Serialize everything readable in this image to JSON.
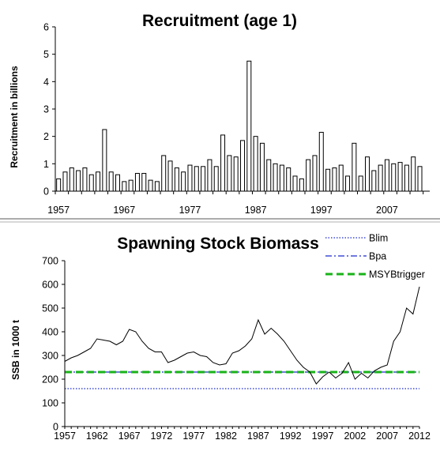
{
  "chart_data": [
    {
      "type": "bar",
      "title": "Recruitment (age 1)",
      "xlabel": "",
      "ylabel": "Recruitment in billions",
      "ylim": [
        0,
        6
      ],
      "yticks": [
        "0",
        "1",
        "2",
        "3",
        "4",
        "5",
        "6"
      ],
      "xticks": [
        "1957",
        "1967",
        "1977",
        "1987",
        "1997",
        "2007"
      ],
      "grid": false,
      "x": [
        1957,
        1958,
        1959,
        1960,
        1961,
        1962,
        1963,
        1964,
        1965,
        1966,
        1967,
        1968,
        1969,
        1970,
        1971,
        1972,
        1973,
        1974,
        1975,
        1976,
        1977,
        1978,
        1979,
        1980,
        1981,
        1982,
        1983,
        1984,
        1985,
        1986,
        1987,
        1988,
        1989,
        1990,
        1991,
        1992,
        1993,
        1994,
        1995,
        1996,
        1997,
        1998,
        1999,
        2000,
        2001,
        2002,
        2003,
        2004,
        2005,
        2006,
        2007,
        2008,
        2009,
        2010,
        2011,
        2012,
        2013
      ],
      "values": [
        0.45,
        0.7,
        0.85,
        0.75,
        0.85,
        0.6,
        0.7,
        2.25,
        0.7,
        0.6,
        0.35,
        0.4,
        0.65,
        0.65,
        0.4,
        0.35,
        1.3,
        1.1,
        0.85,
        0.7,
        0.95,
        0.9,
        0.9,
        1.15,
        0.9,
        2.05,
        1.3,
        1.25,
        1.85,
        4.75,
        2.0,
        1.75,
        1.15,
        1.0,
        0.95,
        0.85,
        0.55,
        0.45,
        1.15,
        1.3,
        2.15,
        0.8,
        0.85,
        0.95,
        0.55,
        1.75,
        0.55,
        1.25,
        0.75,
        0.95,
        1.15,
        1.0,
        1.05,
        0.95,
        1.25,
        0.9,
        null
      ]
    },
    {
      "type": "line",
      "title": "Spawning Stock Biomass",
      "xlabel": "",
      "ylabel": "SSB in 1000 t",
      "ylim": [
        0,
        700
      ],
      "xlim": [
        1957,
        2012
      ],
      "yticks": [
        "0",
        "100",
        "200",
        "300",
        "400",
        "500",
        "600",
        "700"
      ],
      "xticks": [
        "1957",
        "1962",
        "1967",
        "1972",
        "1977",
        "1982",
        "1987",
        "1992",
        "1997",
        "2002",
        "2007",
        "2012"
      ],
      "grid": false,
      "legend_position": "top-right",
      "x": [
        1957,
        1958,
        1959,
        1960,
        1961,
        1962,
        1963,
        1964,
        1965,
        1966,
        1967,
        1968,
        1969,
        1970,
        1971,
        1972,
        1973,
        1974,
        1975,
        1976,
        1977,
        1978,
        1979,
        1980,
        1981,
        1982,
        1983,
        1984,
        1985,
        1986,
        1987,
        1988,
        1989,
        1990,
        1991,
        1992,
        1993,
        1994,
        1995,
        1996,
        1997,
        1998,
        1999,
        2000,
        2001,
        2002,
        2003,
        2004,
        2005,
        2006,
        2007,
        2008,
        2009,
        2010,
        2011,
        2012
      ],
      "values": [
        275,
        290,
        300,
        315,
        330,
        370,
        365,
        360,
        345,
        360,
        410,
        400,
        360,
        330,
        315,
        315,
        270,
        280,
        295,
        310,
        315,
        300,
        295,
        270,
        260,
        265,
        310,
        320,
        340,
        370,
        450,
        390,
        415,
        390,
        360,
        320,
        280,
        250,
        230,
        180,
        210,
        230,
        205,
        225,
        270,
        200,
        225,
        205,
        235,
        250,
        260,
        360,
        400,
        500,
        475,
        590
      ],
      "series_style": {
        "color": "#000000"
      },
      "reference_lines": [
        {
          "name": "Blim",
          "value": 160,
          "color": "#1a2bcc",
          "style": "dotted"
        },
        {
          "name": "Bpa",
          "value": 230,
          "color": "#1a2bcc",
          "style": "dash-dot"
        },
        {
          "name": "MSYBtrigger",
          "value": 230,
          "color": "#19b319",
          "style": "dashed"
        }
      ]
    }
  ]
}
